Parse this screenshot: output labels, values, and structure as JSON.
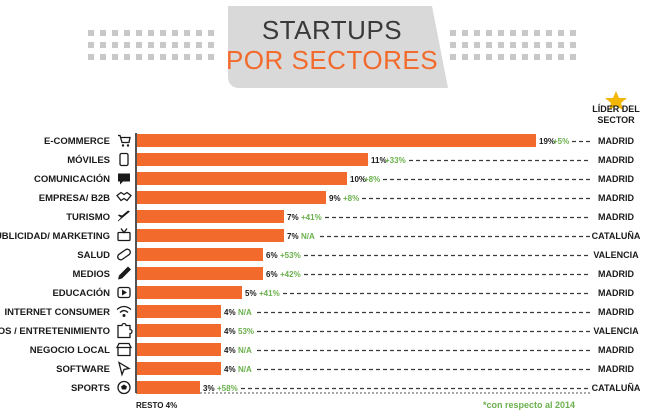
{
  "chart_data": {
    "type": "bar",
    "orientation": "horizontal",
    "title": "STARTUPS",
    "subtitle": "POR SECTORES",
    "leader_header": "LÍDER DEL SECTOR",
    "footnote_left": "RESTO 4%",
    "footnote_right": "*con respecto al 2014",
    "colors": {
      "bar": "#f26b2d",
      "change": "#6ab04c",
      "title_banner": "#d9d9d9"
    },
    "categories": [
      "E-COMMERCE",
      "MÓVILES",
      "COMUNICACIÓN",
      "EMPRESA/ B2B",
      "TURISMO",
      "PUBLICIDAD/ MARKETING",
      "SALUD",
      "MEDIOS",
      "EDUCACIÓN",
      "INTERNET CONSUMER",
      "JUEGOS / ENTRETENIMIENTO",
      "NEGOCIO LOCAL",
      "SOFTWARE",
      "SPORTS"
    ],
    "icons": [
      "cart-icon",
      "mobile-phone-icon",
      "chat-bubble-icon",
      "handshake-icon",
      "airplane-icon",
      "tv-icon",
      "pill-icon",
      "pencil-icon",
      "play-button-icon",
      "wifi-icon",
      "puzzle-icon",
      "storefront-icon",
      "cursor-icon",
      "ball-icon"
    ],
    "values": [
      19,
      11,
      10,
      9,
      7,
      7,
      6,
      6,
      5,
      4,
      4,
      4,
      4,
      3
    ],
    "value_labels": [
      "19%",
      "11%",
      "10%",
      "9%",
      "7%",
      "7%",
      "6%",
      "6%",
      "5%",
      "4%",
      "4%",
      "4%",
      "4%",
      "3%"
    ],
    "changes": [
      "+5%",
      "+33%",
      "+8%",
      "+8%",
      "+41%",
      "N/A",
      "+53%",
      "+42%",
      "+41%",
      "N/A",
      "53%",
      "N/A",
      "N/A",
      "+58%"
    ],
    "leaders": [
      "MADRID",
      "MADRID",
      "MADRID",
      "MADRID",
      "MADRID",
      "CATALUÑA",
      "VALENCIA",
      "MADRID",
      "MADRID",
      "MADRID",
      "VALENCIA",
      "MADRID",
      "MADRID",
      "CATALUÑA"
    ],
    "xlim": [
      0,
      19
    ]
  }
}
